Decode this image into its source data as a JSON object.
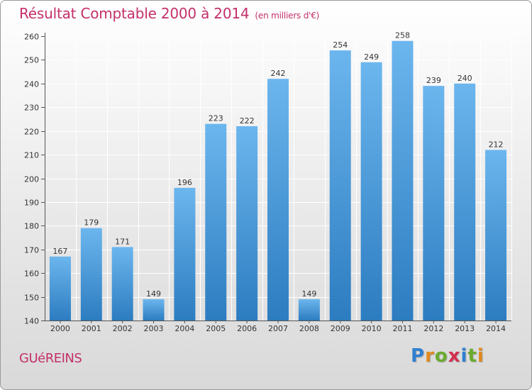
{
  "header": {
    "title": "Résultat Comptable 2000 à 2014",
    "subtitle": "(en milliers d'€)"
  },
  "footer": {
    "commune": "GUéREINS",
    "logo_letters": [
      "P",
      "r",
      "o",
      "x",
      "i",
      "t",
      "i"
    ],
    "logo_colors": [
      "#2f7fd0",
      "#e0891d",
      "#6aab2e",
      "#d32f4d",
      "#2f7fd0",
      "#6aab2e",
      "#e0891d"
    ]
  },
  "colors": {
    "title": "#c4306a",
    "bar_top": "#6cb6ee",
    "bar_bottom": "#2c7cc0",
    "grid": "#ffffff",
    "axis": "#555555"
  },
  "chart_data": {
    "type": "bar",
    "categories": [
      "2000",
      "2001",
      "2002",
      "2003",
      "2004",
      "2005",
      "2006",
      "2007",
      "2008",
      "2009",
      "2010",
      "2011",
      "2012",
      "2013",
      "2014"
    ],
    "values": [
      167,
      179,
      171,
      149,
      196,
      223,
      222,
      242,
      149,
      254,
      249,
      258,
      239,
      240,
      212
    ],
    "title": "Résultat Comptable 2000 à 2014",
    "xlabel": "",
    "ylabel": "",
    "ylim": [
      140,
      260
    ],
    "yticks": [
      140,
      150,
      160,
      170,
      180,
      190,
      200,
      210,
      220,
      230,
      240,
      250,
      260
    ],
    "grid": true,
    "data_labels": true
  }
}
